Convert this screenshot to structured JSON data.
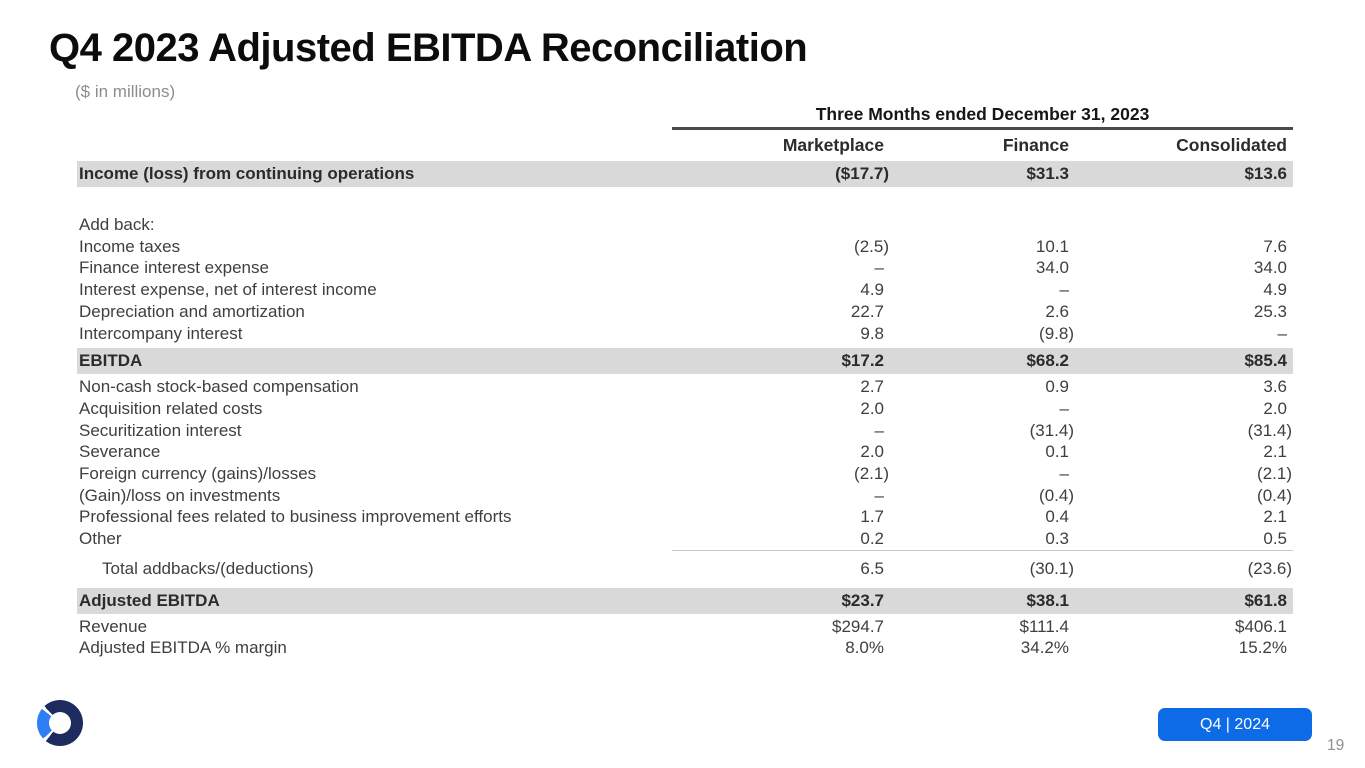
{
  "slide": {
    "title": "Q4 2023 Adjusted EBITDA Reconciliation",
    "subtitle": "($ in millions)",
    "page_number": "19"
  },
  "table": {
    "period_header": "Three Months ended December 31, 2023",
    "columns": [
      "Marketplace",
      "Finance",
      "Consolidated"
    ],
    "rows": [
      {
        "label": "Income (loss) from continuing operations",
        "values": [
          "($17.7)",
          "$31.3",
          "$13.6"
        ],
        "style": "highlight"
      },
      {
        "label": "",
        "values": [
          "",
          "",
          ""
        ],
        "style": "spacer"
      },
      {
        "label": "Add back:",
        "values": [
          "",
          "",
          ""
        ],
        "style": "normal"
      },
      {
        "label": "Income taxes",
        "values": [
          "(2.5)",
          "10.1",
          "7.6"
        ],
        "style": "normal"
      },
      {
        "label": "Finance interest expense",
        "values": [
          "–",
          "34.0",
          "34.0"
        ],
        "style": "normal"
      },
      {
        "label": "Interest expense, net of interest income",
        "values": [
          "4.9",
          "–",
          "4.9"
        ],
        "style": "normal"
      },
      {
        "label": "Depreciation and amortization",
        "values": [
          "22.7",
          "2.6",
          "25.3"
        ],
        "style": "normal"
      },
      {
        "label": "Intercompany interest",
        "values": [
          "9.8",
          "(9.8)",
          "–"
        ],
        "style": "normal"
      },
      {
        "label": "EBITDA",
        "values": [
          "$17.2",
          "$68.2",
          "$85.4"
        ],
        "style": "highlight"
      },
      {
        "label": "Non-cash stock-based compensation",
        "values": [
          "2.7",
          "0.9",
          "3.6"
        ],
        "style": "normal"
      },
      {
        "label": "Acquisition related costs",
        "values": [
          "2.0",
          "–",
          "2.0"
        ],
        "style": "normal"
      },
      {
        "label": "Securitization interest",
        "values": [
          "–",
          "(31.4)",
          "(31.4)"
        ],
        "style": "normal"
      },
      {
        "label": "Severance",
        "values": [
          "2.0",
          "0.1",
          "2.1"
        ],
        "style": "normal"
      },
      {
        "label": "Foreign currency (gains)/losses",
        "values": [
          "(2.1)",
          "–",
          "(2.1)"
        ],
        "style": "normal"
      },
      {
        "label": "(Gain)/loss on investments",
        "values": [
          "–",
          "(0.4)",
          "(0.4)"
        ],
        "style": "normal"
      },
      {
        "label": "Professional fees related to business improvement efforts",
        "values": [
          "1.7",
          "0.4",
          "2.1"
        ],
        "style": "normal"
      },
      {
        "label": "Other",
        "values": [
          "0.2",
          "0.3",
          "0.5"
        ],
        "style": "underline"
      },
      {
        "label": "Total addbacks/(deductions)",
        "values": [
          "6.5",
          "(30.1)",
          "(23.6)"
        ],
        "style": "indent"
      },
      {
        "label": "Adjusted EBITDA",
        "values": [
          "$23.7",
          "$38.1",
          "$61.8"
        ],
        "style": "highlight"
      },
      {
        "label": "Revenue",
        "values": [
          "$294.7",
          "$111.4",
          "$406.1"
        ],
        "style": "normal"
      },
      {
        "label": "Adjusted EBITDA % margin",
        "values": [
          "8.0%",
          "34.2%",
          "15.2%"
        ],
        "style": "normal"
      }
    ]
  },
  "footer": {
    "badge_label": "Q4 | 2024",
    "logo": "company-ring-logo"
  },
  "colors": {
    "accent_blue": "#0e6be8",
    "highlight_row_gray": "#d9d9d9",
    "logo_navy": "#1d2b5f",
    "logo_light_blue": "#2e7ef5"
  }
}
